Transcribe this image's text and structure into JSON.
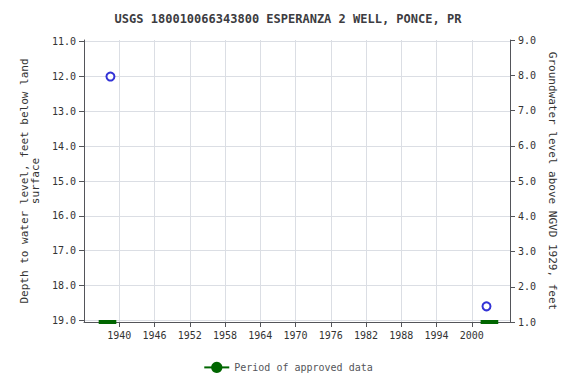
{
  "chart_data": {
    "type": "scatter",
    "title": "USGS 180010066343800 ESPERANZA 2 WELL, PONCE, PR",
    "ylabel": "Depth to water level, feet below land\nsurface",
    "y2label": "Groundwater level above NGVD 1929, feet",
    "xlim": [
      1934.0,
      2006.5
    ],
    "xticks": [
      1940,
      1946,
      1952,
      1958,
      1964,
      1970,
      1976,
      1982,
      1988,
      1994,
      2000
    ],
    "ylim": [
      19.05,
      10.95
    ],
    "yticks": [
      {
        "value": 11.0,
        "label": "11.0"
      },
      {
        "value": 12.0,
        "label": "12.0"
      },
      {
        "value": 13.0,
        "label": "13.0"
      },
      {
        "value": 14.0,
        "label": "14.0"
      },
      {
        "value": 15.0,
        "label": "15.0"
      },
      {
        "value": 16.0,
        "label": "16.0"
      },
      {
        "value": 17.0,
        "label": "17.0"
      },
      {
        "value": 18.0,
        "label": "18.0"
      },
      {
        "value": 19.0,
        "label": "19.0"
      }
    ],
    "y2lim": [
      1.0,
      9.0
    ],
    "y2ticks": [
      {
        "value": 1.0,
        "label": "1.0"
      },
      {
        "value": 2.0,
        "label": "2.0"
      },
      {
        "value": 3.0,
        "label": "3.0"
      },
      {
        "value": 4.0,
        "label": "4.0"
      },
      {
        "value": 5.0,
        "label": "5.0"
      },
      {
        "value": 6.0,
        "label": "6.0"
      },
      {
        "value": 7.0,
        "label": "7.0"
      },
      {
        "value": 8.0,
        "label": "8.0"
      },
      {
        "value": 9.0,
        "label": "9.0"
      }
    ],
    "grid": true,
    "legend": "bottom",
    "series": [
      {
        "type": "scatter",
        "marker": "emptyCircle",
        "color": "#0000cc",
        "x": [
          1938.5,
          2002.5
        ],
        "values": [
          12.0,
          18.6
        ]
      },
      {
        "name": "Period of approved data",
        "type": "line",
        "color": "#006600",
        "x": [
          1936.5,
          1939.5,
          null,
          2001.5,
          2004.5
        ],
        "values": [
          19.05,
          19.05,
          null,
          19.05,
          19.05
        ]
      }
    ]
  }
}
